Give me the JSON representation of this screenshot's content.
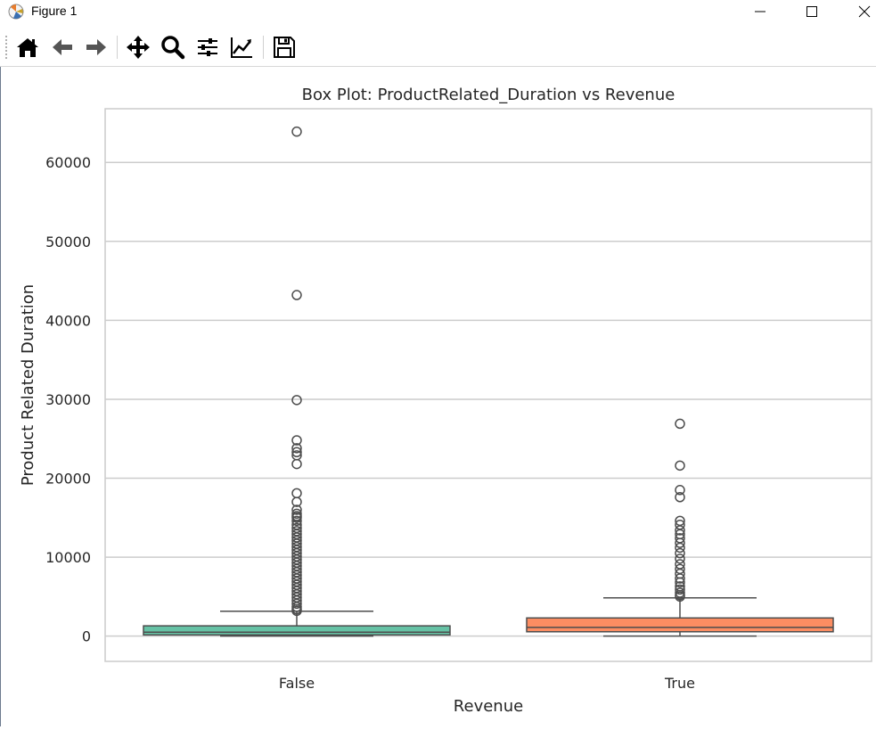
{
  "window": {
    "title": "Figure 1"
  },
  "toolbar": {
    "items": [
      {
        "name": "home-icon",
        "tooltip": "Reset original view"
      },
      {
        "name": "back-icon",
        "tooltip": "Back to previous view"
      },
      {
        "name": "forward-icon",
        "tooltip": "Forward to next view"
      },
      {
        "name": "pan-icon",
        "tooltip": "Pan axes"
      },
      {
        "name": "zoom-icon",
        "tooltip": "Zoom to rectangle"
      },
      {
        "name": "configure-subplots-icon",
        "tooltip": "Configure subplots"
      },
      {
        "name": "edit-axis-icon",
        "tooltip": "Edit axis"
      },
      {
        "name": "save-icon",
        "tooltip": "Save the figure"
      }
    ]
  },
  "chart_data": {
    "type": "box",
    "title": "Box Plot: ProductRelated_Duration vs Revenue",
    "xlabel": "Revenue",
    "ylabel": "Product Related Duration",
    "categories": [
      "False",
      "True"
    ],
    "ylim": [
      -3200,
      66800
    ],
    "yticks": [
      0,
      10000,
      20000,
      30000,
      40000,
      50000,
      60000
    ],
    "grid": true,
    "colors": [
      "#66c2a5",
      "#fc8d62"
    ],
    "boxes": [
      {
        "category": "False",
        "whisker_low": 0,
        "q1": 150,
        "median": 500,
        "q3": 1300,
        "whisker_high": 3150,
        "outliers": [
          63900,
          43200,
          29900,
          24800,
          23800,
          23300,
          22900,
          21800,
          18100,
          17000,
          16000,
          15500,
          15200,
          15000,
          14600,
          14100,
          13700,
          13300,
          12900,
          12500,
          12100,
          11700,
          11300,
          10900,
          10500,
          10100,
          9700,
          9300,
          8900,
          8500,
          8100,
          7700,
          7300,
          6900,
          6500,
          6100,
          5700,
          5300,
          4900,
          4500,
          4100,
          3700,
          3400,
          3200
        ]
      },
      {
        "category": "True",
        "whisker_low": 0,
        "q1": 550,
        "median": 1100,
        "q3": 2300,
        "whisker_high": 4850,
        "outliers": [
          26900,
          21600,
          18500,
          17600,
          14600,
          14100,
          13400,
          12900,
          12400,
          11800,
          11200,
          10500,
          9800,
          9100,
          8500,
          7900,
          7300,
          6800,
          6300,
          5900,
          5500,
          5200,
          5000
        ]
      }
    ]
  }
}
